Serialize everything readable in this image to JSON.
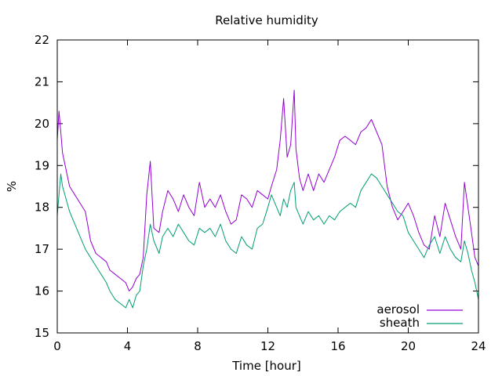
{
  "chart_data": {
    "type": "line",
    "title": "Relative humidity",
    "xlabel": "Time [hour]",
    "ylabel": "%",
    "xlim": [
      0,
      24
    ],
    "ylim": [
      15,
      22
    ],
    "xticks": [
      0,
      4,
      8,
      12,
      16,
      20,
      24
    ],
    "yticks": [
      15,
      16,
      17,
      18,
      19,
      20,
      21,
      22
    ],
    "grid": false,
    "legend_position": "bottom-right",
    "series": [
      {
        "name": "aerosol",
        "color": "#9400d3",
        "x": [
          0,
          0.1,
          0.2,
          0.3,
          0.5,
          0.7,
          1.0,
          1.3,
          1.6,
          1.9,
          2.2,
          2.5,
          2.8,
          3.0,
          3.3,
          3.6,
          3.9,
          4.1,
          4.3,
          4.5,
          4.7,
          4.9,
          5.1,
          5.3,
          5.5,
          5.8,
          6.0,
          6.3,
          6.6,
          6.9,
          7.2,
          7.5,
          7.8,
          8.1,
          8.4,
          8.7,
          9.0,
          9.3,
          9.6,
          9.9,
          10.2,
          10.5,
          10.8,
          11.1,
          11.4,
          11.7,
          12.0,
          12.2,
          12.5,
          12.7,
          12.9,
          13.1,
          13.3,
          13.5,
          13.6,
          13.8,
          14.0,
          14.3,
          14.6,
          14.9,
          15.2,
          15.5,
          15.8,
          16.1,
          16.4,
          16.7,
          17.0,
          17.3,
          17.6,
          17.9,
          18.2,
          18.5,
          18.8,
          19.1,
          19.4,
          19.7,
          20.0,
          20.3,
          20.6,
          20.9,
          21.2,
          21.5,
          21.8,
          22.1,
          22.4,
          22.7,
          23.0,
          23.2,
          23.4,
          23.6,
          23.8,
          24.0
        ],
        "y": [
          19.6,
          20.3,
          19.8,
          19.3,
          18.9,
          18.5,
          18.3,
          18.1,
          17.9,
          17.2,
          16.9,
          16.8,
          16.7,
          16.5,
          16.4,
          16.3,
          16.2,
          16.0,
          16.1,
          16.3,
          16.4,
          16.8,
          18.3,
          19.1,
          17.5,
          17.4,
          17.9,
          18.4,
          18.2,
          17.9,
          18.3,
          18.0,
          17.8,
          18.6,
          18.0,
          18.2,
          18.0,
          18.3,
          17.9,
          17.6,
          17.7,
          18.3,
          18.2,
          18.0,
          18.4,
          18.3,
          18.2,
          18.5,
          18.9,
          19.6,
          20.6,
          19.2,
          19.5,
          20.8,
          19.4,
          18.7,
          18.4,
          18.8,
          18.4,
          18.8,
          18.6,
          18.9,
          19.2,
          19.6,
          19.7,
          19.6,
          19.5,
          19.8,
          19.9,
          20.1,
          19.8,
          19.5,
          18.5,
          18.0,
          17.7,
          17.9,
          18.1,
          17.8,
          17.4,
          17.1,
          17.0,
          17.8,
          17.3,
          18.1,
          17.7,
          17.3,
          17.0,
          18.6,
          18.0,
          17.4,
          16.8,
          16.6
        ]
      },
      {
        "name": "sheath",
        "color": "#009e73",
        "x": [
          0,
          0.1,
          0.2,
          0.3,
          0.5,
          0.7,
          1.0,
          1.3,
          1.6,
          1.9,
          2.2,
          2.5,
          2.8,
          3.0,
          3.3,
          3.6,
          3.9,
          4.1,
          4.3,
          4.5,
          4.7,
          4.9,
          5.1,
          5.3,
          5.5,
          5.8,
          6.0,
          6.3,
          6.6,
          6.9,
          7.2,
          7.5,
          7.8,
          8.1,
          8.4,
          8.7,
          9.0,
          9.3,
          9.6,
          9.9,
          10.2,
          10.5,
          10.8,
          11.1,
          11.4,
          11.7,
          12.0,
          12.2,
          12.5,
          12.7,
          12.9,
          13.1,
          13.3,
          13.5,
          13.6,
          13.8,
          14.0,
          14.3,
          14.6,
          14.9,
          15.2,
          15.5,
          15.8,
          16.1,
          16.4,
          16.7,
          17.0,
          17.3,
          17.6,
          17.9,
          18.2,
          18.5,
          18.8,
          19.1,
          19.4,
          19.7,
          20.0,
          20.3,
          20.6,
          20.9,
          21.2,
          21.5,
          21.8,
          22.1,
          22.4,
          22.7,
          23.0,
          23.2,
          23.4,
          23.6,
          23.8,
          24.0
        ],
        "y": [
          17.8,
          18.3,
          18.8,
          18.5,
          18.2,
          17.9,
          17.6,
          17.3,
          17.0,
          16.8,
          16.6,
          16.4,
          16.2,
          16.0,
          15.8,
          15.7,
          15.6,
          15.8,
          15.6,
          15.9,
          16.0,
          16.6,
          17.0,
          17.6,
          17.2,
          16.9,
          17.3,
          17.5,
          17.3,
          17.6,
          17.4,
          17.2,
          17.1,
          17.5,
          17.4,
          17.5,
          17.3,
          17.6,
          17.2,
          17.0,
          16.9,
          17.3,
          17.1,
          17.0,
          17.5,
          17.6,
          18.0,
          18.3,
          18.0,
          17.8,
          18.2,
          18.0,
          18.4,
          18.6,
          18.0,
          17.8,
          17.6,
          17.9,
          17.7,
          17.8,
          17.6,
          17.8,
          17.7,
          17.9,
          18.0,
          18.1,
          18.0,
          18.4,
          18.6,
          18.8,
          18.7,
          18.5,
          18.3,
          18.1,
          17.9,
          17.8,
          17.4,
          17.2,
          17.0,
          16.8,
          17.1,
          17.3,
          16.9,
          17.3,
          17.0,
          16.8,
          16.7,
          17.2,
          16.9,
          16.5,
          16.2,
          15.8
        ]
      }
    ]
  }
}
